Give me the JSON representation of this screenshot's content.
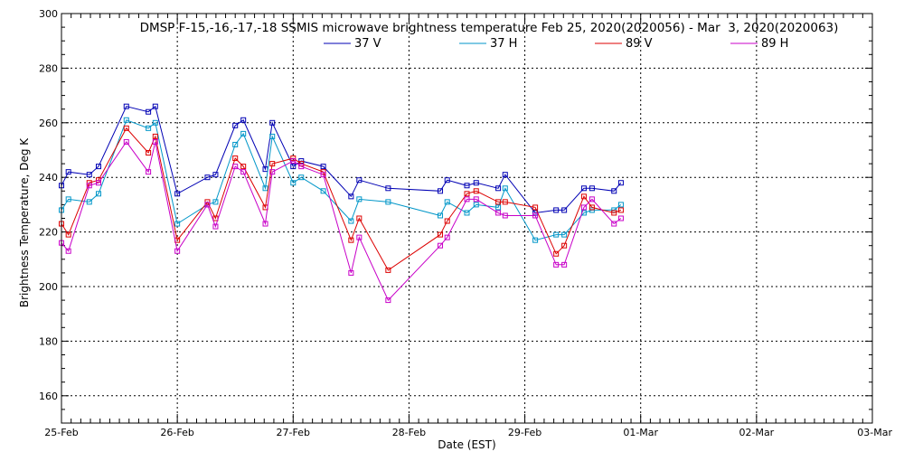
{
  "chart_data": {
    "type": "line",
    "title": "DMSP F-15,-16,-17,-18 SSMIS microwave brightness temperature Feb 25, 2020(2020056) - Mar  3, 2020(2020063)",
    "xlabel": "Date (EST)",
    "ylabel": "Brightness Temperature, Deg K",
    "xlim": [
      0,
      7
    ],
    "ylim": [
      150,
      300
    ],
    "x_ticks": [
      {
        "value": 0,
        "label": "25-Feb"
      },
      {
        "value": 1,
        "label": "26-Feb"
      },
      {
        "value": 2,
        "label": "27-Feb"
      },
      {
        "value": 3,
        "label": "28-Feb"
      },
      {
        "value": 4,
        "label": "29-Feb"
      },
      {
        "value": 5,
        "label": "01-Mar"
      },
      {
        "value": 6,
        "label": "02-Mar"
      },
      {
        "value": 7,
        "label": "03-Mar"
      }
    ],
    "y_ticks": [
      160,
      180,
      200,
      220,
      240,
      260,
      280,
      300
    ],
    "grid": true,
    "legend_position": "top",
    "series": [
      {
        "name": "37 V",
        "color": "#0000b4",
        "points": [
          [
            0.0,
            237
          ],
          [
            0.06,
            242
          ],
          [
            0.24,
            241
          ],
          [
            0.32,
            244
          ],
          [
            0.56,
            266
          ],
          [
            0.75,
            264
          ],
          [
            0.81,
            266
          ],
          [
            1.0,
            234
          ],
          [
            1.26,
            240
          ],
          [
            1.33,
            241
          ],
          [
            1.5,
            259
          ],
          [
            1.57,
            261
          ],
          [
            1.76,
            243
          ],
          [
            1.82,
            260
          ],
          [
            2.0,
            244
          ],
          [
            2.07,
            246
          ],
          [
            2.26,
            244
          ],
          [
            2.5,
            233
          ],
          [
            2.57,
            239
          ],
          [
            2.82,
            236
          ],
          [
            3.27,
            235
          ],
          [
            3.33,
            239
          ],
          [
            3.5,
            237
          ],
          [
            3.58,
            238
          ],
          [
            3.77,
            236
          ],
          [
            3.83,
            241
          ],
          [
            4.09,
            227
          ],
          [
            4.27,
            228
          ],
          [
            4.34,
            228
          ],
          [
            4.51,
            236
          ],
          [
            4.58,
            236
          ],
          [
            4.77,
            235
          ],
          [
            4.83,
            238
          ]
        ]
      },
      {
        "name": "37 H",
        "color": "#0096c8",
        "points": [
          [
            0.0,
            228
          ],
          [
            0.06,
            232
          ],
          [
            0.24,
            231
          ],
          [
            0.32,
            234
          ],
          [
            0.56,
            261
          ],
          [
            0.75,
            258
          ],
          [
            0.81,
            260
          ],
          [
            1.0,
            223
          ],
          [
            1.26,
            230
          ],
          [
            1.33,
            231
          ],
          [
            1.5,
            252
          ],
          [
            1.57,
            256
          ],
          [
            1.76,
            236
          ],
          [
            1.82,
            255
          ],
          [
            2.0,
            238
          ],
          [
            2.07,
            240
          ],
          [
            2.26,
            235
          ],
          [
            2.5,
            224
          ],
          [
            2.57,
            232
          ],
          [
            2.82,
            231
          ],
          [
            3.27,
            226
          ],
          [
            3.33,
            231
          ],
          [
            3.5,
            227
          ],
          [
            3.58,
            230
          ],
          [
            3.77,
            229
          ],
          [
            3.83,
            236
          ],
          [
            4.09,
            217
          ],
          [
            4.27,
            219
          ],
          [
            4.34,
            219
          ],
          [
            4.51,
            227
          ],
          [
            4.58,
            228
          ],
          [
            4.77,
            228
          ],
          [
            4.83,
            230
          ]
        ]
      },
      {
        "name": "89 V",
        "color": "#dc0000",
        "points": [
          [
            0.0,
            223
          ],
          [
            0.06,
            219
          ],
          [
            0.24,
            238
          ],
          [
            0.32,
            239
          ],
          [
            0.56,
            258
          ],
          [
            0.75,
            249
          ],
          [
            0.81,
            255
          ],
          [
            1.0,
            217
          ],
          [
            1.26,
            231
          ],
          [
            1.33,
            225
          ],
          [
            1.5,
            247
          ],
          [
            1.57,
            244
          ],
          [
            1.76,
            229
          ],
          [
            1.82,
            245
          ],
          [
            2.0,
            247
          ],
          [
            2.07,
            245
          ],
          [
            2.26,
            242
          ],
          [
            2.5,
            217
          ],
          [
            2.57,
            225
          ],
          [
            2.82,
            206
          ],
          [
            3.27,
            219
          ],
          [
            3.33,
            224
          ],
          [
            3.5,
            234
          ],
          [
            3.58,
            235
          ],
          [
            3.77,
            231
          ],
          [
            3.83,
            231
          ],
          [
            4.09,
            229
          ],
          [
            4.27,
            212
          ],
          [
            4.34,
            215
          ],
          [
            4.51,
            233
          ],
          [
            4.58,
            229
          ],
          [
            4.77,
            227
          ],
          [
            4.83,
            228
          ]
        ]
      },
      {
        "name": "89 H",
        "color": "#c800c8",
        "points": [
          [
            0.0,
            216
          ],
          [
            0.06,
            213
          ],
          [
            0.24,
            237
          ],
          [
            0.32,
            238
          ],
          [
            0.56,
            253
          ],
          [
            0.75,
            242
          ],
          [
            0.81,
            253
          ],
          [
            1.0,
            213
          ],
          [
            1.26,
            230
          ],
          [
            1.33,
            222
          ],
          [
            1.5,
            244
          ],
          [
            1.57,
            242
          ],
          [
            1.76,
            223
          ],
          [
            1.82,
            242
          ],
          [
            2.0,
            246
          ],
          [
            2.07,
            244
          ],
          [
            2.26,
            241
          ],
          [
            2.5,
            205
          ],
          [
            2.57,
            218
          ],
          [
            2.82,
            195
          ],
          [
            3.27,
            215
          ],
          [
            3.33,
            218
          ],
          [
            3.5,
            232
          ],
          [
            3.58,
            232
          ],
          [
            3.77,
            227
          ],
          [
            3.83,
            226
          ],
          [
            4.09,
            226
          ],
          [
            4.27,
            208
          ],
          [
            4.34,
            208
          ],
          [
            4.51,
            229
          ],
          [
            4.58,
            232
          ],
          [
            4.77,
            223
          ],
          [
            4.83,
            225
          ]
        ]
      }
    ]
  }
}
